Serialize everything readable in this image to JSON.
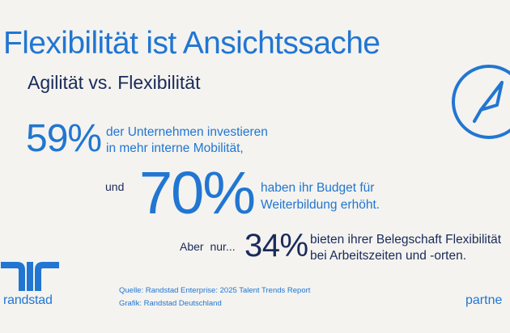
{
  "header": {
    "title": "Flexibilität ist Ansichtssache",
    "subtitle": "Agilität vs. Flexibilität"
  },
  "stats": [
    {
      "prefix": "",
      "value": "59%",
      "line1": "der Unternehmen investieren",
      "line2": "in mehr interne Mobilität,"
    },
    {
      "prefix": "und",
      "value": "70%",
      "line1": "haben ihr Budget für",
      "line2": "Weiterbildung erhöht."
    },
    {
      "prefix": "Aber nur...",
      "value": "34%",
      "line1": "bieten ihrer Belegschaft Flexibilität",
      "line2": "bei Arbeitszeiten und -orten."
    }
  ],
  "footer": {
    "brand": "randstad",
    "source": "Quelle: Randstad Enterprise: 2025 Talent Trends Report",
    "graphic": "Grafik: Randstad Deutschland",
    "partner": "partne"
  },
  "icons": {
    "compass": "compass-icon",
    "logo": "randstad-logo-icon"
  },
  "colors": {
    "accent": "#2176d2",
    "dark": "#1a2a5a",
    "background": "#f4f3ef"
  }
}
